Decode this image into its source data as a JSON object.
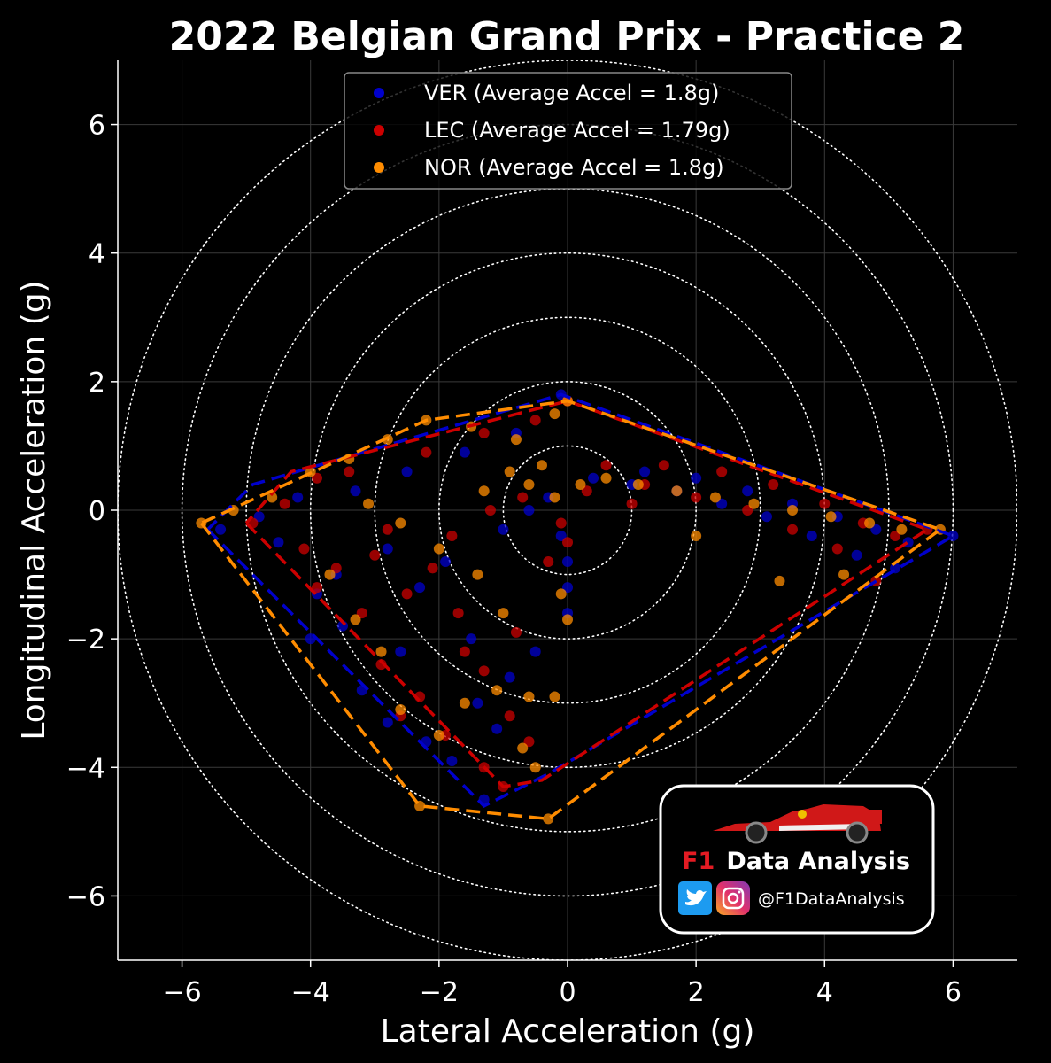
{
  "chart_data": {
    "type": "scatter",
    "title": "2022 Belgian Grand Prix - Practice 2",
    "xlabel": "Lateral Acceleration (g)",
    "ylabel": "Longitudinal Acceleration (g)",
    "xlim": [
      -7,
      7
    ],
    "ylim": [
      -7,
      7
    ],
    "xticks": [
      "−6",
      "−4",
      "−2",
      "0",
      "2",
      "4",
      "6"
    ],
    "yticks": [
      "6",
      "4",
      "2",
      "0",
      "−2",
      "−4",
      "−6"
    ],
    "grid": true,
    "reference_circles_g": [
      1,
      2,
      3,
      4,
      5,
      6,
      7
    ],
    "legend_position": "top-center",
    "series": [
      {
        "name": "VER (Average Accel = 1.8g)",
        "color": "#0000cc",
        "hull": [
          [
            -5.6,
            -0.3
          ],
          [
            -1.3,
            -4.6
          ],
          [
            -0.3,
            -4.1
          ],
          [
            6.0,
            -0.4
          ],
          [
            -0.1,
            1.8
          ],
          [
            -4.9,
            0.4
          ]
        ],
        "points": [
          [
            -5.4,
            -0.3
          ],
          [
            -4.8,
            -0.1
          ],
          [
            -4.2,
            0.2
          ],
          [
            -3.9,
            -1.3
          ],
          [
            -3.5,
            -1.8
          ],
          [
            -4.0,
            -2.0
          ],
          [
            -3.2,
            -2.8
          ],
          [
            -2.8,
            -3.3
          ],
          [
            -2.2,
            -3.6
          ],
          [
            -1.8,
            -3.9
          ],
          [
            -1.3,
            -4.5
          ],
          [
            -1.1,
            -3.4
          ],
          [
            -0.9,
            -2.6
          ],
          [
            -1.5,
            -2.0
          ],
          [
            -2.3,
            -1.2
          ],
          [
            -2.8,
            -0.6
          ],
          [
            -3.3,
            0.3
          ],
          [
            -2.5,
            0.6
          ],
          [
            -1.6,
            0.9
          ],
          [
            -0.8,
            1.2
          ],
          [
            -0.1,
            1.8
          ],
          [
            0.0,
            -1.6
          ],
          [
            0.0,
            -1.2
          ],
          [
            0.0,
            -0.8
          ],
          [
            -0.1,
            -0.4
          ],
          [
            0.4,
            0.5
          ],
          [
            1.2,
            0.6
          ],
          [
            2.0,
            0.5
          ],
          [
            2.8,
            0.3
          ],
          [
            3.5,
            0.1
          ],
          [
            4.2,
            -0.1
          ],
          [
            4.8,
            -0.3
          ],
          [
            5.3,
            -0.5
          ],
          [
            6.0,
            -0.4
          ],
          [
            5.1,
            -0.9
          ],
          [
            4.5,
            -0.7
          ],
          [
            3.8,
            -0.4
          ],
          [
            3.1,
            -0.1
          ],
          [
            2.4,
            0.1
          ],
          [
            1.7,
            0.3
          ],
          [
            1.0,
            0.4
          ],
          [
            -0.3,
            0.2
          ],
          [
            -0.6,
            0.0
          ],
          [
            -1.0,
            -0.3
          ],
          [
            -1.9,
            -0.8
          ],
          [
            -2.6,
            -2.2
          ],
          [
            -1.4,
            -3.0
          ],
          [
            -0.5,
            -2.2
          ],
          [
            -3.6,
            -1.0
          ],
          [
            -4.5,
            -0.5
          ]
        ]
      },
      {
        "name": "LEC (Average Accel = 1.79g)",
        "color": "#cc0000",
        "hull": [
          [
            -5.0,
            -0.2
          ],
          [
            -1.0,
            -4.3
          ],
          [
            -0.4,
            -4.2
          ],
          [
            5.6,
            -0.3
          ],
          [
            0.0,
            1.7
          ],
          [
            -4.3,
            0.6
          ]
        ],
        "points": [
          [
            -4.9,
            -0.2
          ],
          [
            -4.4,
            0.1
          ],
          [
            -3.9,
            0.5
          ],
          [
            -3.6,
            -0.9
          ],
          [
            -3.2,
            -1.6
          ],
          [
            -3.9,
            -1.2
          ],
          [
            -2.9,
            -2.4
          ],
          [
            -2.3,
            -2.9
          ],
          [
            -1.9,
            -3.5
          ],
          [
            -1.3,
            -4.0
          ],
          [
            -1.0,
            -4.3
          ],
          [
            -0.9,
            -3.2
          ],
          [
            -1.3,
            -2.5
          ],
          [
            -1.7,
            -1.6
          ],
          [
            -2.1,
            -0.9
          ],
          [
            -2.8,
            -0.3
          ],
          [
            -3.4,
            0.6
          ],
          [
            -2.2,
            0.9
          ],
          [
            -1.3,
            1.2
          ],
          [
            -0.5,
            1.4
          ],
          [
            0.0,
            1.7
          ],
          [
            0.0,
            -0.5
          ],
          [
            -0.1,
            -0.2
          ],
          [
            0.6,
            0.7
          ],
          [
            1.5,
            0.7
          ],
          [
            2.4,
            0.6
          ],
          [
            3.2,
            0.4
          ],
          [
            4.0,
            0.1
          ],
          [
            4.6,
            -0.2
          ],
          [
            5.1,
            -0.4
          ],
          [
            5.6,
            -0.3
          ],
          [
            4.8,
            -1.1
          ],
          [
            4.2,
            -0.6
          ],
          [
            3.5,
            -0.3
          ],
          [
            2.8,
            0.0
          ],
          [
            2.0,
            0.2
          ],
          [
            1.2,
            0.4
          ],
          [
            0.3,
            0.3
          ],
          [
            -0.7,
            0.2
          ],
          [
            -1.2,
            0.0
          ],
          [
            -1.8,
            -0.4
          ],
          [
            -2.5,
            -1.3
          ],
          [
            -1.6,
            -2.2
          ],
          [
            -0.8,
            -1.9
          ],
          [
            -3.0,
            -0.7
          ],
          [
            -4.1,
            -0.6
          ],
          [
            -2.6,
            -3.2
          ],
          [
            -0.6,
            -3.6
          ],
          [
            -0.3,
            -0.8
          ],
          [
            1.0,
            0.1
          ]
        ]
      },
      {
        "name": "NOR (Average Accel = 1.8g)",
        "color": "#ff8c00",
        "hull": [
          [
            -5.7,
            -0.2
          ],
          [
            -2.3,
            -4.6
          ],
          [
            -0.3,
            -4.8
          ],
          [
            5.8,
            -0.3
          ],
          [
            0.0,
            1.7
          ],
          [
            -2.2,
            1.4
          ]
        ],
        "points": [
          [
            -5.7,
            -0.2
          ],
          [
            -5.2,
            0.0
          ],
          [
            -4.6,
            0.2
          ],
          [
            -4.0,
            0.6
          ],
          [
            -3.4,
            0.8
          ],
          [
            -2.8,
            1.1
          ],
          [
            -2.2,
            1.4
          ],
          [
            -1.5,
            1.3
          ],
          [
            -0.8,
            1.1
          ],
          [
            -0.2,
            1.5
          ],
          [
            0.0,
            1.7
          ],
          [
            -3.7,
            -1.0
          ],
          [
            -3.3,
            -1.7
          ],
          [
            -2.9,
            -2.2
          ],
          [
            -2.6,
            -3.1
          ],
          [
            -2.3,
            -4.6
          ],
          [
            -2.0,
            -3.5
          ],
          [
            -1.6,
            -3.0
          ],
          [
            -1.1,
            -2.8
          ],
          [
            -0.6,
            -2.9
          ],
          [
            -0.2,
            -2.9
          ],
          [
            -0.3,
            -4.8
          ],
          [
            -0.5,
            -4.0
          ],
          [
            -0.7,
            -3.7
          ],
          [
            -1.0,
            -1.6
          ],
          [
            -1.4,
            -1.0
          ],
          [
            -2.0,
            -0.6
          ],
          [
            -2.6,
            -0.2
          ],
          [
            -3.1,
            0.1
          ],
          [
            -0.4,
            0.7
          ],
          [
            -0.6,
            0.4
          ],
          [
            -0.2,
            0.2
          ],
          [
            0.2,
            0.4
          ],
          [
            0.6,
            0.5
          ],
          [
            1.1,
            0.4
          ],
          [
            1.7,
            0.3
          ],
          [
            2.3,
            0.2
          ],
          [
            2.9,
            0.1
          ],
          [
            3.5,
            0.0
          ],
          [
            4.1,
            -0.1
          ],
          [
            4.7,
            -0.2
          ],
          [
            5.2,
            -0.3
          ],
          [
            5.8,
            -0.3
          ],
          [
            4.3,
            -1.0
          ],
          [
            3.3,
            -1.1
          ],
          [
            2.0,
            -0.4
          ],
          [
            -0.9,
            0.6
          ],
          [
            -1.3,
            0.3
          ],
          [
            0.0,
            -1.7
          ],
          [
            -0.1,
            -1.3
          ]
        ]
      }
    ]
  },
  "logo": {
    "prefix": "F1",
    "title": "Data Analysis",
    "handle": "@F1DataAnalysis",
    "icons": [
      "race-car-icon",
      "twitter-icon",
      "instagram-icon"
    ]
  }
}
